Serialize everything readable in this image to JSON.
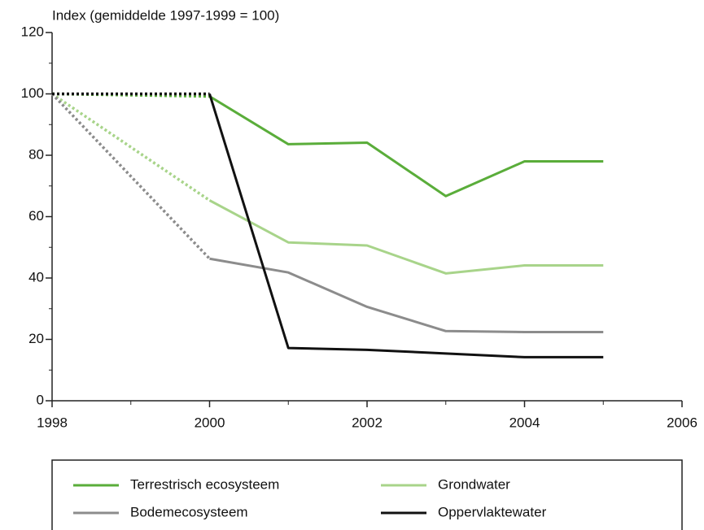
{
  "chart_data": {
    "type": "line",
    "title": "Index (gemiddelde 1997-1999 = 100)",
    "x": [
      1998,
      2000,
      2001,
      2002,
      2003,
      2004,
      2005
    ],
    "series": [
      {
        "name": "Terrestrisch ecosysteem",
        "color": "#5aad3a",
        "values": [
          100,
          99.2,
          83.6,
          84.1,
          66.7,
          78,
          78
        ]
      },
      {
        "name": "Grondwater",
        "color": "#a8d48a",
        "values": [
          100,
          65.3,
          51.6,
          50.6,
          41.5,
          44.1,
          44.1
        ]
      },
      {
        "name": "Bodemecosysteem",
        "color": "#8c8c8c",
        "values": [
          100,
          46.3,
          41.8,
          30.6,
          22.7,
          22.4,
          22.4
        ]
      },
      {
        "name": "Oppervlaktewater",
        "color": "#111111",
        "values": [
          100,
          100,
          17.2,
          16.6,
          15.4,
          14.2,
          14.2
        ]
      }
    ],
    "first_segment_style": "dotted",
    "xlim": [
      1998,
      2006
    ],
    "xticks": [
      1998,
      2000,
      2002,
      2004,
      2006
    ],
    "xminor_ticks": [
      1999,
      2001,
      2003,
      2005
    ],
    "ylim": [
      0,
      120
    ],
    "yticks": [
      0,
      20,
      40,
      60,
      80,
      100,
      120
    ],
    "yminor_ticks": [
      10,
      30,
      50,
      70,
      90,
      110
    ],
    "grid": false
  }
}
